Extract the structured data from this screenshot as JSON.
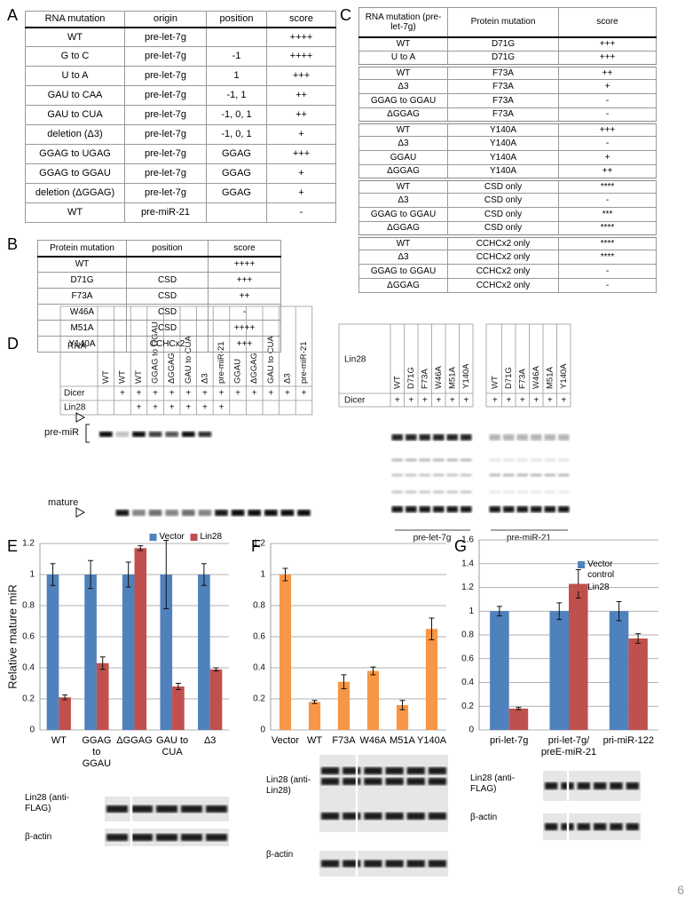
{
  "tables": [
    {
      "panel": "A",
      "header": [
        "RNA mutation",
        "origin",
        "position",
        "score"
      ],
      "rows": [
        [
          "WT",
          "pre-let-7g",
          null,
          "++++"
        ],
        [
          "G to C",
          "pre-let-7g",
          "-1",
          "++++"
        ],
        [
          "U to A",
          "pre-let-7g",
          "1",
          "+++"
        ],
        [
          "GAU to CAA",
          "pre-let-7g",
          "-1, 1",
          "++"
        ],
        [
          "GAU to CUA",
          "pre-let-7g",
          "-1, 0, 1",
          "++"
        ],
        [
          "deletion (Δ3)",
          "pre-let-7g",
          "-1, 0, 1",
          "+"
        ],
        [
          "GGAG to UGAG",
          "pre-let-7g",
          "GGAG",
          "+++"
        ],
        [
          "GGAG to GGAU",
          "pre-let-7g",
          "GGAG",
          "+"
        ],
        [
          "deletion (ΔGGAG)",
          "pre-let-7g",
          "GGAG",
          "+"
        ],
        [
          "WT",
          "pre-miR-21",
          null,
          "-"
        ]
      ]
    },
    {
      "panel": "B",
      "header": [
        "Protein mutation",
        "position",
        "score"
      ],
      "rows": [
        [
          "WT",
          null,
          "++++"
        ],
        [
          "D71G",
          "CSD",
          "+++"
        ],
        [
          "F73A",
          "CSD",
          "++"
        ],
        [
          "W46A",
          "CSD",
          "-"
        ],
        [
          "M51A",
          "CSD",
          "++++"
        ],
        [
          "Y140A",
          "CCHCx2",
          "+++"
        ]
      ]
    },
    {
      "panel": "C",
      "header": [
        "RNA mutation (pre-let-7g)",
        "Protein mutation",
        "score"
      ],
      "groups": [
        [
          [
            "WT",
            "D71G",
            "+++"
          ],
          [
            "U to A",
            "D71G",
            "+++"
          ]
        ],
        [
          [
            "WT",
            "F73A",
            "++"
          ],
          [
            "Δ3",
            "F73A",
            "+"
          ],
          [
            "GGAG to GGAU",
            "F73A",
            "-"
          ],
          [
            "ΔGGAG",
            "F73A",
            "-"
          ]
        ],
        [
          [
            "WT",
            "Y140A",
            "+++"
          ],
          [
            "Δ3",
            "Y140A",
            "-"
          ],
          [
            "GGAU",
            "Y140A",
            "+"
          ],
          [
            "ΔGGAG",
            "Y140A",
            "++"
          ]
        ],
        [
          [
            "WT",
            "CSD only",
            "****"
          ],
          [
            "Δ3",
            "CSD only",
            "-"
          ],
          [
            "GGAG to GGAU",
            "CSD only",
            "***"
          ],
          [
            "ΔGGAG",
            "CSD only",
            "****"
          ]
        ],
        [
          [
            "WT",
            "CCHCx2 only",
            "****"
          ],
          [
            "Δ3",
            "CCHCx2 only",
            "****"
          ],
          [
            "GGAG to GGAU",
            "CCHCx2 only",
            "-"
          ],
          [
            "ΔGGAG",
            "CCHCx2 only",
            "-"
          ]
        ]
      ]
    }
  ],
  "gel": {
    "panel": "D",
    "left": {
      "row_label": "RNA",
      "lanes": [
        "WT",
        "WT",
        "WT",
        "GGAG to GGAU",
        "ΔGGAG",
        "GAU to CUA",
        "Δ3",
        "pre-miR-21",
        "GGAU",
        "ΔGGAG",
        "GAU to CUA",
        "Δ3",
        "pre-miR-21"
      ],
      "rows": [
        {
          "label": "Dicer",
          "marks": [
            null,
            "+",
            "+",
            "+",
            "+",
            "+",
            "+",
            "+",
            "+",
            "+",
            "+",
            "+",
            "+"
          ]
        },
        {
          "label": "Lin28",
          "marks": [
            null,
            null,
            "+",
            "+",
            "+",
            "+",
            "+",
            "+",
            null,
            null,
            null,
            null,
            null
          ]
        }
      ],
      "band_labels": [
        "pre-miR",
        "mature"
      ]
    },
    "right": {
      "row_label": "Lin28",
      "lanes": [
        "WT",
        "D71G",
        "F73A",
        "W46A",
        "M51A",
        "Y140A",
        "WT",
        "D71G",
        "F73A",
        "W46A",
        "M51A",
        "Y140A"
      ],
      "rows": [
        {
          "label": "Dicer",
          "marks": [
            "+",
            "+",
            "+",
            "+",
            "+",
            "+",
            "+",
            "+",
            "+",
            "+",
            "+",
            "+"
          ]
        }
      ],
      "group_labels": [
        "pre-let-7g",
        "pre-miR-21"
      ]
    }
  },
  "chart_data": [
    {
      "panel": "E",
      "type": "bar",
      "ylabel": "Relative mature miR",
      "categories": [
        "WT",
        "GGAG to GGAU",
        "ΔGGAG",
        "GAU to CUA",
        "Δ3"
      ],
      "series": [
        {
          "name": "Vector",
          "color": "#4f81bd",
          "values": [
            1,
            1,
            1,
            1,
            1
          ],
          "errors": [
            0.07,
            0.09,
            0.08,
            0.22,
            0.07
          ]
        },
        {
          "name": "Lin28",
          "color": "#c0504d",
          "values": [
            0.21,
            0.43,
            1.17,
            0.28,
            0.39
          ],
          "errors": [
            0.015,
            0.04,
            0.015,
            0.02,
            0.01
          ]
        }
      ],
      "ylim": [
        0,
        1.2
      ],
      "yticks": [
        0,
        0.2,
        0.4,
        0.6,
        0.8,
        1,
        1.2
      ],
      "grid": true,
      "legend": "top",
      "blot_labels": [
        "Lin28 (anti-FLAG)",
        "β-actin"
      ]
    },
    {
      "panel": "F",
      "type": "bar",
      "categories": [
        "Vector",
        "WT",
        "F73A",
        "W46A",
        "M51A",
        "Y140A"
      ],
      "values": [
        1,
        0.18,
        0.31,
        0.38,
        0.16,
        0.65
      ],
      "errors": [
        0.04,
        0.01,
        0.045,
        0.025,
        0.03,
        0.07
      ],
      "color": "#f79646",
      "ylim": [
        0,
        1.2
      ],
      "yticks": [
        0,
        0.2,
        0.4,
        0.6,
        0.8,
        1,
        1.2
      ],
      "grid": true,
      "blot_labels": [
        "Lin28 (anti-Lin28)",
        "β-actin"
      ]
    },
    {
      "panel": "G",
      "type": "bar",
      "categories": [
        "pri-let-7g",
        "pri-let-7g/ preE-miR-21",
        "pri-miR-122"
      ],
      "series": [
        {
          "name": "Vector control",
          "color": "#4f81bd",
          "values": [
            1,
            1,
            1
          ],
          "errors": [
            0.04,
            0.07,
            0.08
          ]
        },
        {
          "name": "Lin28",
          "color": "#c0504d",
          "values": [
            0.18,
            1.23,
            0.77
          ],
          "errors": [
            0.01,
            0.12,
            0.04
          ]
        }
      ],
      "ylim": [
        0,
        1.6
      ],
      "yticks": [
        0,
        0.2,
        0.4,
        0.6,
        0.8,
        1,
        1.2,
        1.4,
        1.6
      ],
      "grid": true,
      "legend": "top-right",
      "blot_labels": [
        "Lin28 (anti-FLAG)",
        "β-actin"
      ]
    }
  ],
  "page_number": "6"
}
